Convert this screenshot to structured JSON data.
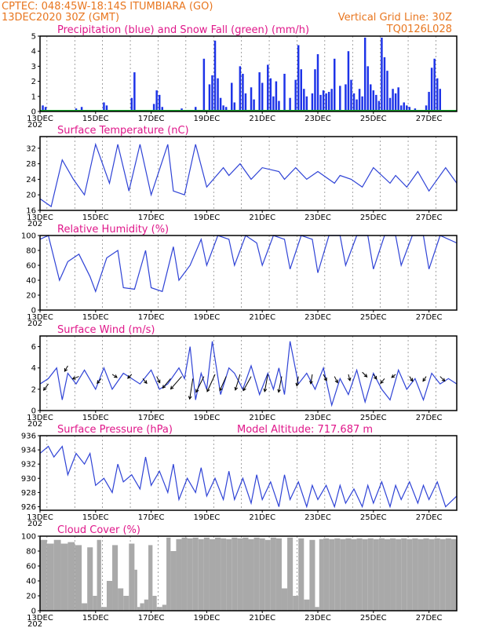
{
  "header": {
    "line1": "CPTEC:   048:45W-18:14S   ITUMBIARA (GO)",
    "line2_left": "13DEC2020 30Z (GMT)",
    "line2_right": "Vertical Grid Line: 30Z",
    "line3_right": "TQ0126L028"
  },
  "colors": {
    "header": "#e8761f",
    "panel_title": "#e0178a",
    "precip": "#1d33e8",
    "snow": "#16a829",
    "line": "#2f43d6",
    "cloud": "#a9a9a9"
  },
  "x_axis": {
    "days": 15,
    "tick_labels": [
      "13DEC",
      "15DEC",
      "17DEC",
      "19DEC",
      "21DEC",
      "23DEC",
      "25DEC",
      "27DEC"
    ],
    "tick_days": [
      0,
      2,
      4,
      6,
      8,
      10,
      12,
      14
    ],
    "year_fragment": "202"
  },
  "chart_data": [
    {
      "id": "precip",
      "type": "bar",
      "title": "Precipitation (blue) and Snow Fall (green) (mm/h)",
      "ylim": [
        0,
        5
      ],
      "yticks": [
        "0",
        "1",
        "2",
        "3",
        "4",
        "5"
      ],
      "snow_value": 0,
      "x": [
        0.1,
        0.2,
        1.3,
        1.5,
        2.2,
        2.3,
        2.4,
        3.1,
        3.3,
        3.4,
        4.1,
        4.2,
        4.3,
        4.4,
        5.1,
        5.6,
        5.9,
        6.1,
        6.2,
        6.3,
        6.4,
        6.5,
        6.6,
        6.7,
        6.9,
        7.0,
        7.2,
        7.3,
        7.4,
        7.6,
        7.7,
        7.9,
        8.0,
        8.2,
        8.3,
        8.4,
        8.5,
        8.6,
        8.8,
        9.0,
        9.2,
        9.3,
        9.4,
        9.5,
        9.6,
        9.8,
        9.9,
        10.0,
        10.1,
        10.2,
        10.3,
        10.4,
        10.5,
        10.6,
        10.8,
        11.0,
        11.1,
        11.2,
        11.3,
        11.4,
        11.5,
        11.6,
        11.7,
        11.8,
        11.9,
        12.0,
        12.1,
        12.2,
        12.3,
        12.4,
        12.5,
        12.6,
        12.7,
        12.8,
        12.9,
        13.0,
        13.1,
        13.2,
        13.3,
        13.5,
        13.9,
        14.0,
        14.1,
        14.2,
        14.3,
        14.4
      ],
      "values": [
        0.4,
        0.3,
        0.2,
        0.3,
        0.1,
        0.6,
        0.4,
        0.1,
        0.9,
        2.6,
        0.5,
        1.4,
        1.1,
        0.3,
        0.2,
        0.3,
        3.5,
        1.8,
        2.4,
        4.7,
        2.2,
        0.9,
        0.4,
        0.3,
        1.9,
        0.6,
        3.0,
        2.5,
        1.2,
        1.6,
        0.8,
        2.6,
        1.9,
        3.1,
        2.2,
        1.0,
        2.0,
        0.7,
        2.5,
        0.9,
        2.1,
        4.4,
        2.8,
        1.5,
        1.0,
        1.2,
        2.8,
        3.8,
        1.1,
        1.4,
        1.2,
        1.3,
        1.5,
        3.5,
        1.7,
        1.8,
        4.0,
        2.1,
        1.2,
        0.8,
        1.5,
        1.0,
        4.9,
        3.0,
        1.8,
        1.4,
        1.1,
        0.7,
        4.9,
        3.6,
        2.7,
        0.9,
        1.5,
        1.2,
        1.6,
        0.4,
        0.6,
        0.4,
        0.3,
        0.2,
        0.4,
        1.3,
        2.9,
        3.5,
        2.2,
        1.5
      ]
    },
    {
      "id": "temperature",
      "type": "line",
      "title": "Surface Temperature (nC)",
      "ylim": [
        16,
        35
      ],
      "yticks": [
        "16",
        "20",
        "24",
        "28",
        "32"
      ],
      "x": [
        0.0,
        0.4,
        0.8,
        1.2,
        1.6,
        2.0,
        2.5,
        2.8,
        3.2,
        3.6,
        4.0,
        4.6,
        4.8,
        5.2,
        5.6,
        6.0,
        6.6,
        6.8,
        7.2,
        7.6,
        8.0,
        8.6,
        8.8,
        9.2,
        9.6,
        10.0,
        10.6,
        10.8,
        11.2,
        11.6,
        12.0,
        12.6,
        12.8,
        13.2,
        13.6,
        14.0,
        14.6,
        15.0
      ],
      "values": [
        19,
        17,
        29,
        24,
        20,
        33,
        23,
        33,
        21,
        33,
        20,
        33,
        21,
        20,
        33,
        22,
        27,
        25,
        28,
        24,
        27,
        26,
        24,
        27,
        24,
        26,
        23,
        25,
        24,
        22,
        27,
        23,
        25,
        22,
        26,
        21,
        27,
        23
      ]
    },
    {
      "id": "humidity",
      "type": "line",
      "title": "Relative Humidity (%)",
      "ylim": [
        0,
        100
      ],
      "yticks": [
        "0",
        "20",
        "40",
        "60",
        "80",
        "100"
      ],
      "x": [
        0.0,
        0.3,
        0.7,
        1.0,
        1.4,
        1.8,
        2.0,
        2.4,
        2.8,
        3.0,
        3.4,
        3.8,
        4.0,
        4.4,
        4.8,
        5.0,
        5.4,
        5.8,
        6.0,
        6.4,
        6.8,
        7.0,
        7.4,
        7.8,
        8.0,
        8.4,
        8.8,
        9.0,
        9.4,
        9.8,
        10.0,
        10.4,
        10.8,
        11.0,
        11.4,
        11.8,
        12.0,
        12.4,
        12.8,
        13.0,
        13.4,
        13.8,
        14.0,
        14.4,
        15.0
      ],
      "values": [
        95,
        100,
        40,
        65,
        75,
        45,
        25,
        70,
        80,
        30,
        28,
        80,
        30,
        25,
        85,
        40,
        60,
        95,
        60,
        100,
        95,
        60,
        100,
        90,
        60,
        100,
        95,
        55,
        100,
        95,
        50,
        100,
        100,
        60,
        100,
        100,
        55,
        100,
        100,
        60,
        100,
        100,
        55,
        100,
        90
      ]
    },
    {
      "id": "wind",
      "type": "line",
      "title": "Surface Wind (m/s)",
      "ylim": [
        0,
        7
      ],
      "yticks": [
        "0",
        "2",
        "4",
        "6"
      ],
      "x": [
        0.0,
        0.3,
        0.6,
        0.8,
        1.0,
        1.3,
        1.6,
        2.0,
        2.3,
        2.6,
        3.0,
        3.3,
        3.6,
        4.0,
        4.3,
        4.6,
        5.0,
        5.2,
        5.4,
        5.6,
        5.8,
        6.0,
        6.2,
        6.5,
        6.8,
        7.0,
        7.3,
        7.6,
        7.9,
        8.2,
        8.4,
        8.6,
        8.8,
        9.0,
        9.3,
        9.6,
        9.9,
        10.2,
        10.5,
        10.8,
        11.1,
        11.4,
        11.7,
        12.0,
        12.3,
        12.6,
        12.9,
        13.2,
        13.5,
        13.8,
        14.1,
        14.4,
        14.7,
        15.0
      ],
      "values": [
        2.5,
        3.0,
        4.0,
        1.0,
        3.5,
        2.5,
        3.8,
        2.0,
        4.0,
        2.0,
        3.5,
        3.0,
        2.5,
        3.8,
        2.0,
        2.5,
        4.0,
        3.0,
        6.0,
        1.0,
        3.5,
        2.0,
        6.5,
        1.5,
        4.0,
        3.5,
        2.0,
        4.2,
        1.5,
        3.5,
        2.0,
        4.0,
        1.5,
        6.5,
        2.5,
        3.5,
        2.0,
        4.0,
        0.5,
        3.0,
        1.5,
        3.8,
        0.8,
        3.5,
        2.0,
        1.0,
        3.8,
        2.0,
        3.0,
        1.0,
        3.5,
        2.5,
        3.0,
        2.5
      ],
      "barbs": [
        {
          "x": 0.3,
          "y": 2.5,
          "dx": -6,
          "dy": 8
        },
        {
          "x": 1.0,
          "y": 4.2,
          "dx": -4,
          "dy": 7
        },
        {
          "x": 1.4,
          "y": 3.2,
          "dx": -8,
          "dy": 3
        },
        {
          "x": 2.2,
          "y": 3.0,
          "dx": -5,
          "dy": 6
        },
        {
          "x": 2.6,
          "y": 3.4,
          "dx": 6,
          "dy": 4
        },
        {
          "x": 3.3,
          "y": 3.4,
          "dx": -5,
          "dy": 5
        },
        {
          "x": 3.7,
          "y": 3.0,
          "dx": 5,
          "dy": 6
        },
        {
          "x": 4.2,
          "y": 3.2,
          "dx": 4,
          "dy": 8
        },
        {
          "x": 4.7,
          "y": 3.0,
          "dx": -10,
          "dy": 12
        },
        {
          "x": 5.1,
          "y": 3.2,
          "dx": -14,
          "dy": 16
        },
        {
          "x": 5.5,
          "y": 3.0,
          "dx": -4,
          "dy": 26
        },
        {
          "x": 5.9,
          "y": 3.2,
          "dx": -10,
          "dy": 20
        },
        {
          "x": 6.3,
          "y": 3.4,
          "dx": -10,
          "dy": 22
        },
        {
          "x": 6.7,
          "y": 3.2,
          "dx": -8,
          "dy": 18
        },
        {
          "x": 7.2,
          "y": 3.4,
          "dx": -6,
          "dy": 20
        },
        {
          "x": 7.6,
          "y": 3.2,
          "dx": -10,
          "dy": 18
        },
        {
          "x": 8.2,
          "y": 3.4,
          "dx": -4,
          "dy": 22
        },
        {
          "x": 8.7,
          "y": 3.2,
          "dx": -4,
          "dy": 20
        },
        {
          "x": 9.3,
          "y": 3.2,
          "dx": -2,
          "dy": 12
        },
        {
          "x": 9.8,
          "y": 3.4,
          "dx": -2,
          "dy": 12
        },
        {
          "x": 10.2,
          "y": 3.4,
          "dx": 4,
          "dy": 8
        },
        {
          "x": 10.6,
          "y": 3.2,
          "dx": 4,
          "dy": 8
        },
        {
          "x": 11.1,
          "y": 3.4,
          "dx": 2,
          "dy": 8
        },
        {
          "x": 11.6,
          "y": 3.6,
          "dx": 6,
          "dy": 6
        },
        {
          "x": 12.0,
          "y": 3.4,
          "dx": 4,
          "dy": 6
        },
        {
          "x": 12.4,
          "y": 3.0,
          "dx": -5,
          "dy": 6
        },
        {
          "x": 12.8,
          "y": 3.4,
          "dx": -5,
          "dy": 4
        },
        {
          "x": 13.3,
          "y": 3.2,
          "dx": 4,
          "dy": 6
        },
        {
          "x": 13.9,
          "y": 3.2,
          "dx": -4,
          "dy": 6
        },
        {
          "x": 14.4,
          "y": 3.2,
          "dx": 6,
          "dy": 6
        }
      ]
    },
    {
      "id": "pressure",
      "type": "line",
      "title": "Surface Pressure (hPa)",
      "subtitle": "Model Altitude: 717.687 m",
      "ylim": [
        925.5,
        936
      ],
      "yticks": [
        "926",
        "928",
        "930",
        "932",
        "934",
        "936"
      ],
      "x": [
        0.0,
        0.3,
        0.5,
        0.8,
        1.0,
        1.3,
        1.6,
        1.8,
        2.0,
        2.3,
        2.6,
        2.8,
        3.0,
        3.3,
        3.6,
        3.8,
        4.0,
        4.3,
        4.6,
        4.8,
        5.0,
        5.3,
        5.6,
        5.8,
        6.0,
        6.3,
        6.6,
        6.8,
        7.0,
        7.3,
        7.6,
        7.8,
        8.0,
        8.3,
        8.6,
        8.8,
        9.0,
        9.3,
        9.6,
        9.8,
        10.0,
        10.3,
        10.6,
        10.8,
        11.0,
        11.3,
        11.6,
        11.8,
        12.0,
        12.3,
        12.6,
        12.8,
        13.0,
        13.3,
        13.6,
        13.8,
        14.0,
        14.3,
        14.6,
        15.0
      ],
      "values": [
        933.5,
        934.5,
        933.0,
        934.5,
        930.5,
        933.5,
        932.0,
        933.5,
        929.0,
        930.0,
        928.0,
        932.0,
        929.5,
        930.5,
        928.5,
        933.0,
        929.0,
        931.0,
        928.0,
        932.0,
        927.0,
        930.0,
        928.0,
        931.5,
        927.5,
        930.0,
        927.0,
        931.0,
        927.0,
        930.0,
        926.5,
        930.5,
        927.0,
        929.5,
        926.0,
        930.5,
        927.0,
        929.5,
        926.0,
        929.0,
        927.0,
        929.0,
        926.0,
        929.0,
        926.5,
        928.5,
        926.0,
        929.0,
        926.5,
        929.5,
        926.0,
        929.0,
        927.0,
        929.5,
        926.5,
        929.0,
        927.0,
        929.5,
        926.0,
        927.5
      ]
    },
    {
      "id": "cloud",
      "type": "area",
      "title": "Cloud Cover (%)",
      "ylim": [
        0,
        100
      ],
      "yticks": [
        "0",
        "20",
        "40",
        "60",
        "80",
        "100"
      ],
      "x": [
        0.0,
        0.25,
        0.5,
        0.75,
        1.0,
        1.25,
        1.5,
        1.7,
        1.9,
        2.05,
        2.2,
        2.4,
        2.6,
        2.8,
        3.0,
        3.2,
        3.4,
        3.5,
        3.6,
        3.75,
        3.9,
        4.05,
        4.2,
        4.4,
        4.55,
        4.7,
        4.9,
        5.1,
        5.3,
        5.5,
        5.7,
        5.9,
        6.1,
        6.3,
        6.5,
        6.7,
        6.9,
        7.1,
        7.3,
        7.5,
        7.7,
        7.9,
        8.1,
        8.3,
        8.5,
        8.7,
        8.9,
        9.1,
        9.3,
        9.5,
        9.7,
        9.9,
        10.05,
        10.2,
        10.4,
        10.6,
        10.8,
        11.0,
        11.2,
        11.4,
        11.6,
        11.8,
        12.0,
        12.2,
        12.4,
        12.6,
        12.8,
        13.0,
        13.2,
        13.4,
        13.6,
        13.8,
        14.0,
        14.2,
        14.4,
        14.6,
        14.8,
        15.0
      ],
      "values": [
        95,
        90,
        95,
        90,
        92,
        88,
        10,
        85,
        20,
        95,
        5,
        40,
        88,
        30,
        20,
        90,
        55,
        5,
        10,
        15,
        88,
        20,
        5,
        8,
        98,
        80,
        96,
        98,
        97,
        98,
        96,
        98,
        96,
        98,
        97,
        96,
        98,
        97,
        98,
        96,
        98,
        97,
        95,
        98,
        97,
        30,
        98,
        20,
        97,
        15,
        95,
        5,
        96,
        97,
        96,
        97,
        96,
        97,
        96,
        97,
        96,
        97,
        96,
        97,
        96,
        97,
        96,
        97,
        96,
        97,
        96,
        97,
        96,
        97,
        96,
        97,
        96,
        97
      ]
    }
  ]
}
